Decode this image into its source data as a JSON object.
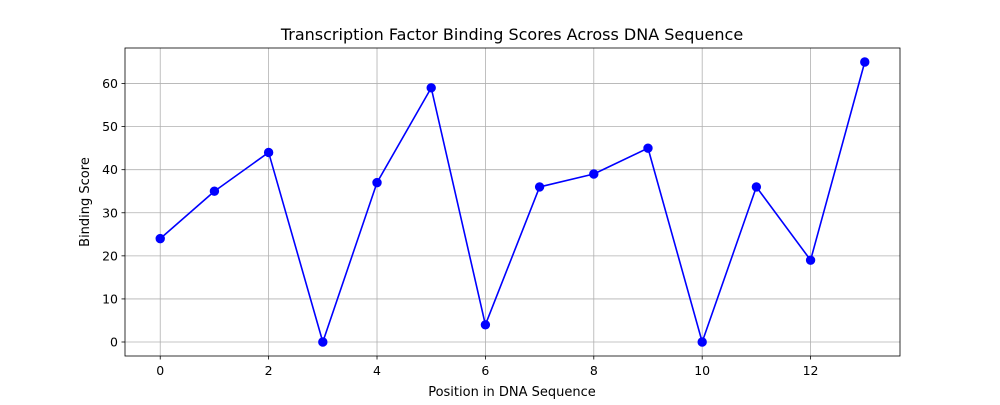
{
  "chart_data": {
    "type": "line",
    "title": "Transcription Factor Binding Scores Across DNA Sequence",
    "xlabel": "Position in DNA Sequence",
    "ylabel": "Binding Score",
    "xlim": [
      -0.65,
      13.65
    ],
    "ylim": [
      -3.25,
      68.25
    ],
    "x_ticks": [
      0,
      2,
      4,
      6,
      8,
      10,
      12
    ],
    "y_ticks": [
      0,
      10,
      20,
      30,
      40,
      50,
      60
    ],
    "grid": true,
    "series": [
      {
        "color": "#0000ff",
        "marker": "circle",
        "x": [
          0,
          1,
          2,
          3,
          4,
          5,
          6,
          7,
          8,
          9,
          10,
          11,
          12,
          13
        ],
        "y": [
          24,
          35,
          44,
          0,
          37,
          59,
          4,
          36,
          39,
          45,
          0,
          36,
          19,
          65
        ]
      }
    ]
  }
}
